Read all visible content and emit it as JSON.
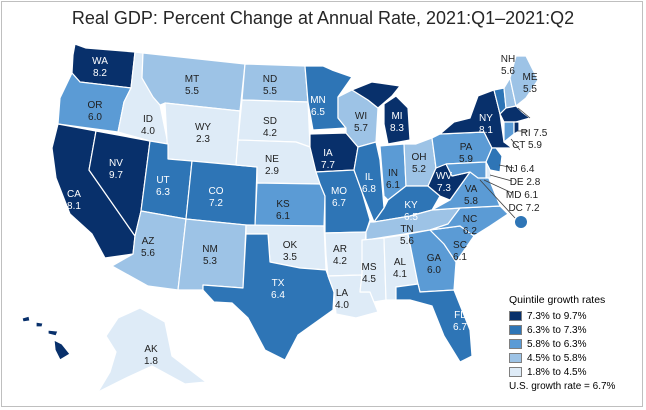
{
  "title": "Real GDP: Percent Change at Annual Rate, 2021:Q1–2021:Q2",
  "colors": {
    "q5": "#08306b",
    "q4": "#2e75b6",
    "q3": "#5b9bd5",
    "q2": "#9dc3e6",
    "q1": "#deebf7",
    "outline": "#ffffff"
  },
  "states": {
    "WA": {
      "abbr": "WA",
      "value": "8.2",
      "q": "q5"
    },
    "OR": {
      "abbr": "OR",
      "value": "6.0",
      "q": "q3"
    },
    "CA": {
      "abbr": "CA",
      "value": "8.1",
      "q": "q5"
    },
    "NV": {
      "abbr": "NV",
      "value": "9.7",
      "q": "q5"
    },
    "ID": {
      "abbr": "ID",
      "value": "4.0",
      "q": "q1"
    },
    "MT": {
      "abbr": "MT",
      "value": "5.5",
      "q": "q2"
    },
    "WY": {
      "abbr": "WY",
      "value": "2.3",
      "q": "q1"
    },
    "UT": {
      "abbr": "UT",
      "value": "6.3",
      "q": "q4"
    },
    "AZ": {
      "abbr": "AZ",
      "value": "5.6",
      "q": "q2"
    },
    "CO": {
      "abbr": "CO",
      "value": "7.2",
      "q": "q4"
    },
    "NM": {
      "abbr": "NM",
      "value": "5.3",
      "q": "q2"
    },
    "ND": {
      "abbr": "ND",
      "value": "5.5",
      "q": "q2"
    },
    "SD": {
      "abbr": "SD",
      "value": "4.2",
      "q": "q1"
    },
    "NE": {
      "abbr": "NE",
      "value": "2.9",
      "q": "q1"
    },
    "KS": {
      "abbr": "KS",
      "value": "6.1",
      "q": "q3"
    },
    "OK": {
      "abbr": "OK",
      "value": "3.5",
      "q": "q1"
    },
    "TX": {
      "abbr": "TX",
      "value": "6.4",
      "q": "q4"
    },
    "MN": {
      "abbr": "MN",
      "value": "6.5",
      "q": "q4"
    },
    "IA": {
      "abbr": "IA",
      "value": "7.7",
      "q": "q5"
    },
    "MO": {
      "abbr": "MO",
      "value": "6.7",
      "q": "q4"
    },
    "AR": {
      "abbr": "AR",
      "value": "4.2",
      "q": "q1"
    },
    "LA": {
      "abbr": "LA",
      "value": "4.0",
      "q": "q1"
    },
    "WI": {
      "abbr": "WI",
      "value": "5.7",
      "q": "q2"
    },
    "IL": {
      "abbr": "IL",
      "value": "6.8",
      "q": "q4"
    },
    "MI": {
      "abbr": "MI",
      "value": "8.3",
      "q": "q5"
    },
    "IN": {
      "abbr": "IN",
      "value": "6.1",
      "q": "q3"
    },
    "OH": {
      "abbr": "OH",
      "value": "5.2",
      "q": "q2"
    },
    "KY": {
      "abbr": "KY",
      "value": "6.5",
      "q": "q4"
    },
    "TN": {
      "abbr": "TN",
      "value": "5.6",
      "q": "q2"
    },
    "MS": {
      "abbr": "MS",
      "value": "4.5",
      "q": "q1"
    },
    "AL": {
      "abbr": "AL",
      "value": "4.1",
      "q": "q1"
    },
    "GA": {
      "abbr": "GA",
      "value": "6.0",
      "q": "q3"
    },
    "FL": {
      "abbr": "FL",
      "value": "6.7",
      "q": "q4"
    },
    "SC": {
      "abbr": "SC",
      "value": "6.1",
      "q": "q3"
    },
    "NC": {
      "abbr": "NC",
      "value": "6.2",
      "q": "q3"
    },
    "VA": {
      "abbr": "VA",
      "value": "5.8",
      "q": "q3"
    },
    "WV": {
      "abbr": "WV",
      "value": "7.3",
      "q": "q5"
    },
    "PA": {
      "abbr": "PA",
      "value": "5.9",
      "q": "q3"
    },
    "NY": {
      "abbr": "NY",
      "value": "8.1",
      "q": "q5"
    },
    "VT": {
      "abbr": "VT",
      "value": "6.5",
      "q": "q4"
    },
    "NH": {
      "abbr": "NH",
      "value": "5.6",
      "q": "q2"
    },
    "ME": {
      "abbr": "ME",
      "value": "5.5",
      "q": "q2"
    },
    "MA": {
      "abbr": "MA",
      "value": "8.0",
      "q": "q5"
    },
    "RI": {
      "abbr": "RI",
      "value": "7.5",
      "q": "q5"
    },
    "CT": {
      "abbr": "CT",
      "value": "5.9",
      "q": "q3"
    },
    "NJ": {
      "abbr": "NJ",
      "value": "6.4",
      "q": "q4"
    },
    "DE": {
      "abbr": "DE",
      "value": "2.8",
      "q": "q1"
    },
    "MD": {
      "abbr": "MD",
      "value": "6.1",
      "q": "q3"
    },
    "DC": {
      "abbr": "DC",
      "value": "7.2",
      "q": "q4"
    },
    "AK": {
      "abbr": "AK",
      "value": "1.8",
      "q": "q1"
    },
    "HI": {
      "abbr": "HI",
      "value": "8.9",
      "q": "q5"
    }
  },
  "legend": {
    "title": "Quintile growth rates",
    "items": [
      {
        "label": "7.3% to 9.7%",
        "color": "#08306b"
      },
      {
        "label": "6.3% to 7.3%",
        "color": "#2e75b6"
      },
      {
        "label": "5.8% to 6.3%",
        "color": "#5b9bd5"
      },
      {
        "label": "4.5% to 5.8%",
        "color": "#9dc3e6"
      },
      {
        "label": "1.8% to 4.5%",
        "color": "#deebf7"
      }
    ],
    "us_note": "U.S. growth rate = 6.7%"
  }
}
